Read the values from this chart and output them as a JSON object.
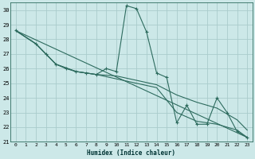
{
  "xlabel": "Humidex (Indice chaleur)",
  "bg_color": "#cce8e8",
  "grid_color": "#aacccc",
  "line_color": "#2d6b5e",
  "xlim": [
    -0.5,
    23.5
  ],
  "ylim": [
    21,
    30.5
  ],
  "yticks": [
    21,
    22,
    23,
    24,
    25,
    26,
    27,
    28,
    29,
    30
  ],
  "xticks": [
    0,
    1,
    2,
    3,
    4,
    5,
    6,
    7,
    8,
    9,
    10,
    11,
    12,
    13,
    14,
    15,
    16,
    17,
    18,
    19,
    20,
    21,
    22,
    23
  ],
  "series_main": [
    [
      0,
      28.6
    ],
    [
      2,
      27.7
    ],
    [
      3,
      27.0
    ],
    [
      4,
      26.3
    ],
    [
      5,
      26.0
    ],
    [
      6,
      25.8
    ],
    [
      7,
      25.7
    ],
    [
      8,
      25.6
    ],
    [
      9,
      26.0
    ],
    [
      10,
      25.8
    ],
    [
      11,
      30.3
    ],
    [
      12,
      30.1
    ],
    [
      13,
      28.5
    ],
    [
      14,
      25.7
    ],
    [
      15,
      25.4
    ],
    [
      16,
      22.3
    ],
    [
      17,
      23.5
    ],
    [
      18,
      22.2
    ],
    [
      19,
      22.2
    ],
    [
      20,
      24.0
    ],
    [
      21,
      23.0
    ],
    [
      22,
      21.7
    ],
    [
      23,
      21.3
    ]
  ],
  "line_trend1": [
    [
      0,
      28.6
    ],
    [
      23,
      21.3
    ]
  ],
  "line_trend2": [
    [
      0,
      28.6
    ],
    [
      2,
      27.7
    ],
    [
      4,
      26.3
    ],
    [
      6,
      25.8
    ],
    [
      8,
      25.6
    ],
    [
      10,
      25.3
    ],
    [
      12,
      25.0
    ],
    [
      14,
      24.7
    ],
    [
      16,
      23.0
    ],
    [
      18,
      22.4
    ],
    [
      20,
      22.2
    ],
    [
      22,
      21.8
    ],
    [
      23,
      21.3
    ]
  ],
  "line_trend3": [
    [
      0,
      28.6
    ],
    [
      2,
      27.7
    ],
    [
      4,
      26.3
    ],
    [
      6,
      25.8
    ],
    [
      8,
      25.6
    ],
    [
      10,
      25.5
    ],
    [
      12,
      25.2
    ],
    [
      14,
      24.9
    ],
    [
      16,
      24.2
    ],
    [
      18,
      23.7
    ],
    [
      20,
      23.3
    ],
    [
      22,
      22.5
    ],
    [
      23,
      21.8
    ]
  ]
}
